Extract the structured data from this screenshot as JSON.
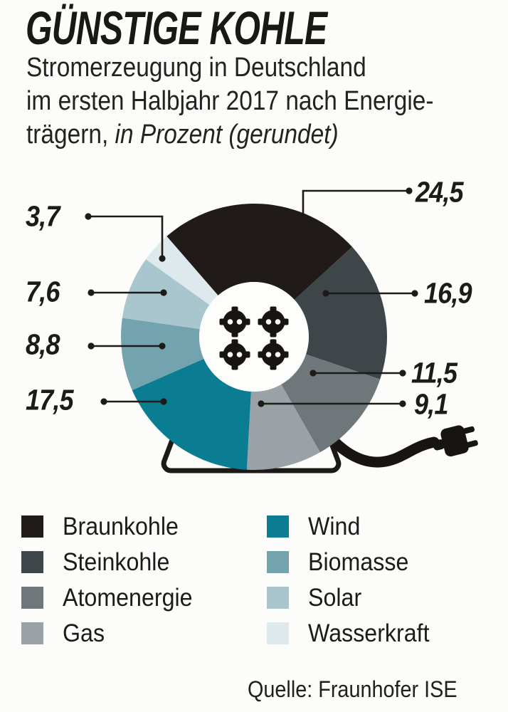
{
  "header": {
    "title": "GÜNSTIGE KOHLE",
    "subtitle_line1": "Stromerzeugung in Deutschland",
    "subtitle_line2": "im ersten Halbjahr 2017 nach Energie-",
    "subtitle_line3_regular": "trägern, ",
    "subtitle_line3_italic": "in Prozent (gerundet)"
  },
  "chart_data": {
    "type": "pie",
    "subtype": "donut",
    "title": "GÜNSTIGE KOHLE",
    "subtitle": "Stromerzeugung in Deutschland im ersten Halbjahr 2017 nach Energieträgern, in Prozent (gerundet)",
    "unit": "percent",
    "direction": "clockwise",
    "start_angle_deg": -41,
    "categories": [
      "Braunkohle",
      "Steinkohle",
      "Atomenergie",
      "Gas",
      "Wind",
      "Biomasse",
      "Solar",
      "Wasserkraft"
    ],
    "values": [
      24.5,
      16.9,
      11.5,
      9.1,
      17.5,
      8.8,
      7.6,
      3.7
    ],
    "labels": [
      "24,5",
      "16,9",
      "11,5",
      "9,1",
      "17,5",
      "8,8",
      "7,6",
      "3,7"
    ],
    "colors": [
      "#201b18",
      "#3f4649",
      "#70777b",
      "#9ba2a7",
      "#0b7d92",
      "#74a3b0",
      "#a9c6cf",
      "#dde9ec"
    ],
    "legend_position": "bottom"
  },
  "legend": {
    "items": [
      {
        "label": "Braunkohle",
        "color": "#201b18"
      },
      {
        "label": "Steinkohle",
        "color": "#3f4649"
      },
      {
        "label": "Atomenergie",
        "color": "#70777b"
      },
      {
        "label": "Gas",
        "color": "#9ba2a7"
      },
      {
        "label": "Wind",
        "color": "#0b7d92"
      },
      {
        "label": "Biomasse",
        "color": "#74a3b0"
      },
      {
        "label": "Solar",
        "color": "#a9c6cf"
      },
      {
        "label": "Wasserkraft",
        "color": "#dde9ec"
      }
    ]
  },
  "source": {
    "text": "Quelle: Fraunhofer ISE"
  }
}
